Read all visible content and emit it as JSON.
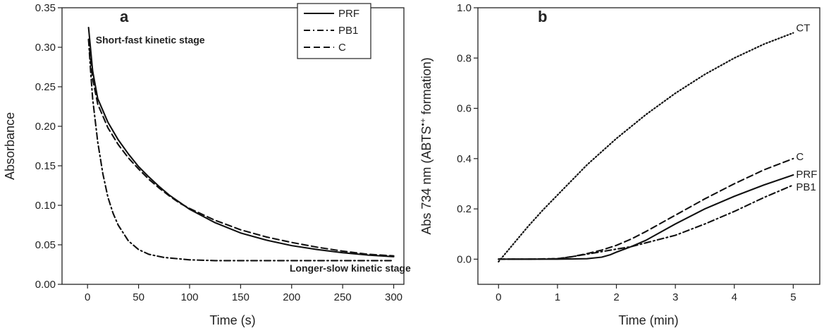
{
  "chart_data": [
    {
      "type": "line",
      "panel_label": "a",
      "xlabel": "Time (s)",
      "ylabel": "Absorbance",
      "xlim": [
        -25,
        310
      ],
      "ylim": [
        0,
        0.35
      ],
      "xticks": [
        0,
        50,
        100,
        150,
        200,
        250,
        300
      ],
      "yticks": [
        0.0,
        0.05,
        0.1,
        0.15,
        0.2,
        0.25,
        0.3,
        0.35
      ],
      "ytick_labels": [
        "0.00",
        "0.05",
        "0.10",
        "0.15",
        "0.20",
        "0.25",
        "0.30",
        "0.35"
      ],
      "legend_position": "top-center",
      "annotations": [
        {
          "text": "Short-fast kinetic stage",
          "x": 8,
          "y": 0.305
        },
        {
          "text": "Longer-slow kinetic stage",
          "x": 198,
          "y": 0.016
        }
      ],
      "series": [
        {
          "name": "PRF",
          "style": "solid",
          "x": [
            1,
            5,
            10,
            20,
            30,
            40,
            50,
            60,
            70,
            80,
            90,
            100,
            125,
            150,
            175,
            200,
            225,
            250,
            275,
            300
          ],
          "y": [
            0.325,
            0.27,
            0.235,
            0.205,
            0.183,
            0.165,
            0.149,
            0.136,
            0.124,
            0.113,
            0.104,
            0.095,
            0.078,
            0.065,
            0.056,
            0.049,
            0.044,
            0.04,
            0.037,
            0.035
          ]
        },
        {
          "name": "PB1",
          "style": "dashdot",
          "x": [
            1,
            3,
            5,
            10,
            15,
            20,
            25,
            30,
            40,
            50,
            60,
            75,
            100,
            125,
            150,
            200,
            250,
            300
          ],
          "y": [
            0.31,
            0.27,
            0.235,
            0.18,
            0.14,
            0.11,
            0.09,
            0.075,
            0.055,
            0.044,
            0.038,
            0.034,
            0.031,
            0.03,
            0.03,
            0.03,
            0.03,
            0.03
          ]
        },
        {
          "name": "C",
          "style": "dashed",
          "x": [
            1,
            5,
            10,
            20,
            30,
            40,
            50,
            60,
            70,
            80,
            90,
            100,
            125,
            150,
            175,
            200,
            225,
            250,
            275,
            300
          ],
          "y": [
            0.31,
            0.26,
            0.228,
            0.198,
            0.177,
            0.16,
            0.146,
            0.133,
            0.122,
            0.112,
            0.103,
            0.096,
            0.081,
            0.069,
            0.06,
            0.053,
            0.047,
            0.042,
            0.038,
            0.036
          ]
        }
      ]
    },
    {
      "type": "line",
      "panel_label": "b",
      "xlabel": "Time (min)",
      "ylabel": "Abs 734 nm (ABTS",
      "ylabel_superscript": "•+",
      "ylabel_suffix": " formation)",
      "xlim": [
        -0.35,
        5.45
      ],
      "ylim": [
        -0.1,
        1.0
      ],
      "xticks": [
        0,
        1,
        2,
        3,
        4,
        5
      ],
      "yticks": [
        0.0,
        0.2,
        0.4,
        0.6,
        0.8,
        1.0
      ],
      "ytick_labels": [
        "0.0",
        "0.2",
        "0.4",
        "0.6",
        "0.8",
        "1.0"
      ],
      "series": [
        {
          "name": "CT",
          "style": "dotted",
          "x": [
            0,
            0.25,
            0.5,
            0.75,
            1,
            1.5,
            2,
            2.5,
            3,
            3.5,
            4,
            4.5,
            5
          ],
          "y": [
            -0.01,
            0.06,
            0.13,
            0.195,
            0.255,
            0.375,
            0.48,
            0.575,
            0.66,
            0.735,
            0.8,
            0.855,
            0.9
          ]
        },
        {
          "name": "C",
          "style": "dashed",
          "x": [
            0,
            0.5,
            1,
            1.25,
            1.5,
            1.75,
            2,
            2.25,
            2.5,
            3,
            3.5,
            4,
            4.5,
            5
          ],
          "y": [
            0,
            0,
            0.002,
            0.01,
            0.022,
            0.036,
            0.055,
            0.08,
            0.11,
            0.175,
            0.24,
            0.3,
            0.355,
            0.4
          ]
        },
        {
          "name": "PRF",
          "style": "solid",
          "x": [
            0,
            0.5,
            1,
            1.5,
            1.75,
            1.9,
            2,
            2.25,
            2.5,
            3,
            3.5,
            4,
            4.5,
            5
          ],
          "y": [
            0,
            0,
            0,
            0.002,
            0.008,
            0.018,
            0.028,
            0.05,
            0.075,
            0.14,
            0.2,
            0.25,
            0.295,
            0.335
          ]
        },
        {
          "name": "PB1",
          "style": "dashdot",
          "x": [
            0,
            0.5,
            1,
            1.25,
            1.5,
            1.75,
            2,
            2.25,
            2.5,
            3,
            3.5,
            4,
            4.5,
            5
          ],
          "y": [
            0,
            0,
            0.002,
            0.01,
            0.02,
            0.03,
            0.04,
            0.05,
            0.065,
            0.095,
            0.14,
            0.19,
            0.245,
            0.295
          ]
        }
      ]
    }
  ]
}
